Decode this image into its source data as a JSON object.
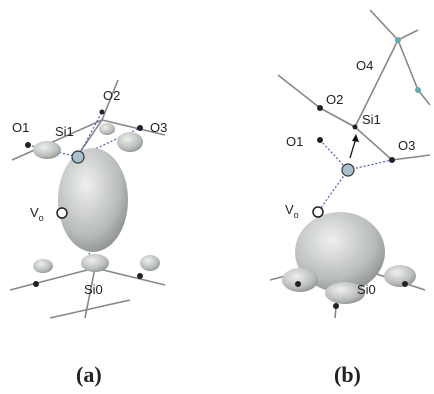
{
  "panels": [
    {
      "atoms": {
        "o2": "O2",
        "o1": "O1",
        "si1": "Si1",
        "o3": "O3",
        "vacancy": {
          "main": "V",
          "sub": "o"
        },
        "si0": "Si0"
      },
      "caption": "(a)"
    },
    {
      "atoms": {
        "o4": "O4",
        "o2": "O2",
        "si1": "Si1",
        "o1": "O1",
        "o3": "O3",
        "vacancy": {
          "main": "V",
          "sub": "o"
        },
        "si0": "Si0"
      },
      "caption": "(b)"
    }
  ]
}
